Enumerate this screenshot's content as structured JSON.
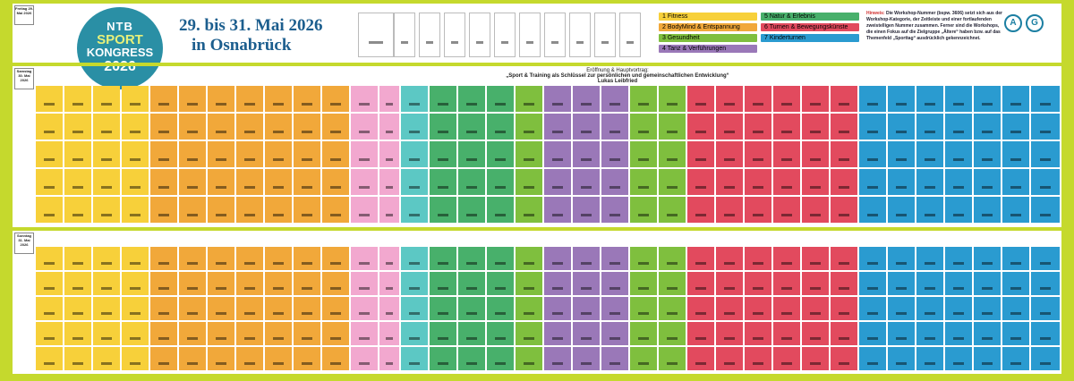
{
  "header": {
    "logo_line1": "NTB",
    "logo_line2": "SPORT",
    "logo_line3": "KONGRESS",
    "logo_line4": "2026",
    "date": "29. bis 31. Mai 2026",
    "place": "in Osnabrück"
  },
  "legend": [
    {
      "num": "1",
      "label": "Fitness",
      "color": "#f7d03a"
    },
    {
      "num": "2",
      "label": "BodyMind & Entspannung",
      "color": "#f1a83a"
    },
    {
      "num": "3",
      "label": "Gesundheit",
      "color": "#7fbf3e"
    },
    {
      "num": "4",
      "label": "Tanz & Verführungen",
      "color": "#9a78b8"
    },
    {
      "num": "5",
      "label": "Natur & Erlebnis",
      "color": "#48b06b"
    },
    {
      "num": "6",
      "label": "Turnen & Bewegungskünste",
      "color": "#e24a5e"
    },
    {
      "num": "7",
      "label": "Kinderturnen",
      "color": "#2a9bd0"
    }
  ],
  "hint": {
    "title": "Hinweis:",
    "text": "Die Workshop-Nummer (bspw. 3606) setzt sich aus der Workshop-Kategorie, der Zeitleiste und einer fortlaufenden zweistelligen Nummer zusammen. Ferner sind die Workshops, die einen Fokus auf die Zielgruppe „Ältere“ haben bzw. auf das Themenfeld „Sporttag“ ausdrücklich gekennzeichnet."
  },
  "badges": {
    "a": "A",
    "c": "G"
  },
  "days": [
    "Freitag 29. Mai 2026",
    "Samstag 30. Mai 2026",
    "Sonntag 31. Mai 2026"
  ],
  "opening": {
    "title": "Eröffnung & Hauptvortrag:",
    "talk": "„Sport & Training als Schlüssel zur persönlichen und gemeinschaftlichen Entwicklung“",
    "speaker": "Lukas Leibfried"
  },
  "colors": {
    "fitness": "#f7d03a",
    "bodymind": "#f1a83a",
    "health": "#7fbf3e",
    "dance": "#9a78b8",
    "pink": "#f2a8cf",
    "nature": "#48b06b",
    "turnen": "#e24a5e",
    "kids": "#2a9bd0",
    "teal": "#5cc8c4"
  }
}
